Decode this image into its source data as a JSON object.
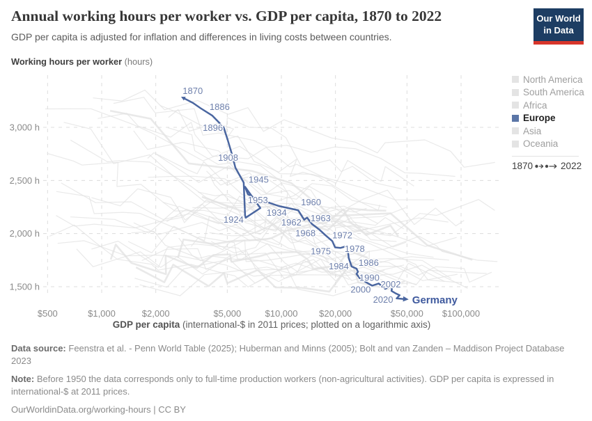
{
  "header": {
    "title": "Annual working hours per worker vs. GDP per capita, 1870 to 2022",
    "subtitle": "GDP per capita is adjusted for inflation and differences in living costs between countries.",
    "logo": {
      "line1": "Our World",
      "line2": "in Data",
      "bg_color": "#1d3d63",
      "bar_color": "#d8352b"
    }
  },
  "legend": {
    "items": [
      {
        "label": "North America",
        "active": false
      },
      {
        "label": "South America",
        "active": false
      },
      {
        "label": "Africa",
        "active": false
      },
      {
        "label": "Europe",
        "active": true
      },
      {
        "label": "Asia",
        "active": false
      },
      {
        "label": "Oceania",
        "active": false
      }
    ],
    "active_color": "#5b76a7",
    "inactive_color": "#e4e4e4",
    "active_text_color": "#1f1f1f",
    "inactive_text_color": "#9e9e9e",
    "timeline": {
      "start": "1870",
      "end": "2022"
    }
  },
  "chart_data": {
    "type": "connected-scatter",
    "title": "Annual working hours per worker vs. GDP per capita, 1870 to 2022",
    "x_axis": {
      "label_bold": "GDP per capita",
      "label_rest": " (international-$ in 2011 prices; plotted on a logarithmic axis)",
      "scale": "log",
      "range": [
        500,
        100000
      ],
      "ticks": [
        {
          "value": 500,
          "label": "$500"
        },
        {
          "value": 1000,
          "label": "$1,000"
        },
        {
          "value": 2000,
          "label": "$2,000"
        },
        {
          "value": 5000,
          "label": "$5,000"
        },
        {
          "value": 10000,
          "label": "$10,000"
        },
        {
          "value": 20000,
          "label": "$20,000"
        },
        {
          "value": 50000,
          "label": "$50,000"
        },
        {
          "value": 100000,
          "label": "$100,000"
        }
      ]
    },
    "y_axis": {
      "label_bold": "Working hours per worker",
      "label_rest": " (hours)",
      "scale": "linear",
      "range": [
        1300,
        3400
      ],
      "ticks": [
        {
          "value": 1500,
          "label": "1,500 h"
        },
        {
          "value": 2000,
          "label": "2,000 h"
        },
        {
          "value": 2500,
          "label": "2,500 h"
        },
        {
          "value": 3000,
          "label": "3,000 h"
        }
      ],
      "grid": true
    },
    "series": [
      {
        "name": "Germany",
        "region": "Europe",
        "color": "#4a66a0",
        "label_color": "#6d7fab",
        "end_label": "Germany",
        "end_label_color": "#3f5a9e",
        "points": [
          [
            1870,
            2900,
            3270
          ],
          [
            1875,
            3220,
            3230
          ],
          [
            1880,
            3550,
            3180
          ],
          [
            1886,
            4130,
            3110
          ],
          [
            1890,
            4470,
            3050
          ],
          [
            1896,
            4770,
            3000
          ],
          [
            1900,
            5030,
            2880
          ],
          [
            1905,
            5300,
            2750
          ],
          [
            1908,
            5550,
            2620
          ],
          [
            1913,
            6170,
            2480
          ],
          [
            1919,
            6280,
            2170
          ],
          [
            1924,
            6330,
            2150
          ],
          [
            1934,
            7640,
            2240
          ],
          [
            1945,
            6280,
            2440
          ],
          [
            1950,
            6510,
            2370
          ],
          [
            1953,
            7050,
            2340
          ],
          [
            1957,
            9650,
            2260
          ],
          [
            1960,
            12400,
            2220
          ],
          [
            1962,
            13400,
            2130
          ],
          [
            1963,
            13900,
            2150
          ],
          [
            1965,
            14800,
            2090
          ],
          [
            1968,
            16200,
            2040
          ],
          [
            1970,
            17700,
            1980
          ],
          [
            1972,
            19200,
            1930
          ],
          [
            1975,
            19900,
            1870
          ],
          [
            1977,
            21300,
            1865
          ],
          [
            1978,
            22900,
            1880
          ],
          [
            1980,
            23500,
            1830
          ],
          [
            1982,
            23700,
            1770
          ],
          [
            1984,
            24600,
            1690
          ],
          [
            1986,
            26200,
            1670
          ],
          [
            1988,
            26700,
            1640
          ],
          [
            1990,
            26200,
            1620
          ],
          [
            1993,
            27600,
            1570
          ],
          [
            1996,
            29100,
            1550
          ],
          [
            2000,
            32000,
            1510
          ],
          [
            2001,
            34800,
            1530
          ],
          [
            2002,
            36300,
            1505
          ],
          [
            2003,
            37800,
            1480
          ],
          [
            2007,
            41500,
            1510
          ],
          [
            2009,
            41000,
            1460
          ],
          [
            2013,
            43000,
            1440
          ],
          [
            2018,
            45500,
            1420
          ],
          [
            2020,
            43800,
            1390
          ],
          [
            2022,
            47600,
            1385
          ]
        ],
        "year_labels": [
          {
            "year": 1870,
            "anchor": "start",
            "dx": -3,
            "dy": -7
          },
          {
            "year": 1886,
            "anchor": "start",
            "dx": -4,
            "dy": -8
          },
          {
            "year": 1896,
            "anchor": "end",
            "dx": -1,
            "dy": 5
          },
          {
            "year": 1908,
            "anchor": "end",
            "dx": 4,
            "dy": -10
          },
          {
            "year": 1924,
            "anchor": "end",
            "dx": -3,
            "dy": 7
          },
          {
            "year": 1934,
            "anchor": "start",
            "dx": 9,
            "dy": 11
          },
          {
            "year": 1945,
            "anchor": "start",
            "dx": 5,
            "dy": -6
          },
          {
            "year": 1953,
            "anchor": "start",
            "dx": -9,
            "dy": 8
          },
          {
            "year": 1960,
            "anchor": "start",
            "dx": 4,
            "dy": -7
          },
          {
            "year": 1962,
            "anchor": "end",
            "dx": -4,
            "dy": 8
          },
          {
            "year": 1963,
            "anchor": "start",
            "dx": 5,
            "dy": 5
          },
          {
            "year": 1968,
            "anchor": "end",
            "dx": -5,
            "dy": 10
          },
          {
            "year": 1972,
            "anchor": "start",
            "dx": 0,
            "dy": -4
          },
          {
            "year": 1975,
            "anchor": "end",
            "dx": -6,
            "dy": 10
          },
          {
            "year": 1978,
            "anchor": "start",
            "dx": -2,
            "dy": 8
          },
          {
            "year": 1984,
            "anchor": "end",
            "dx": -4,
            "dy": 4
          },
          {
            "year": 1986,
            "anchor": "start",
            "dx": 3,
            "dy": -4
          },
          {
            "year": 1990,
            "anchor": "start",
            "dx": 4,
            "dy": 10
          },
          {
            "year": 2000,
            "anchor": "end",
            "dx": -2,
            "dy": 10
          },
          {
            "year": 2002,
            "anchor": "start",
            "dx": -2,
            "dy": 2
          },
          {
            "year": 2020,
            "anchor": "end",
            "dx": -5,
            "dy": 6
          }
        ]
      }
    ],
    "background_series": {
      "description": "other countries, unlabeled light gray lines",
      "color": "#e1e1e1",
      "count": 44
    },
    "grid_color": "#dcdcdc",
    "tick_text_color": "#8a8a8a"
  },
  "footer": {
    "datasource_label": "Data source:",
    "datasource_text": "Feenstra et al. - Penn World Table (2025); Huberman and Minns (2005); Bolt and van Zanden – Maddison Project Database 2023",
    "note_label": "Note:",
    "note_text": "Before 1950 the data corresponds only to full-time production workers (non-agricultural activities). GDP per capita is expressed in international-$ at 2011 prices.",
    "url": "OurWorldinData.org/working-hours",
    "separator": " | ",
    "license": "CC BY"
  }
}
